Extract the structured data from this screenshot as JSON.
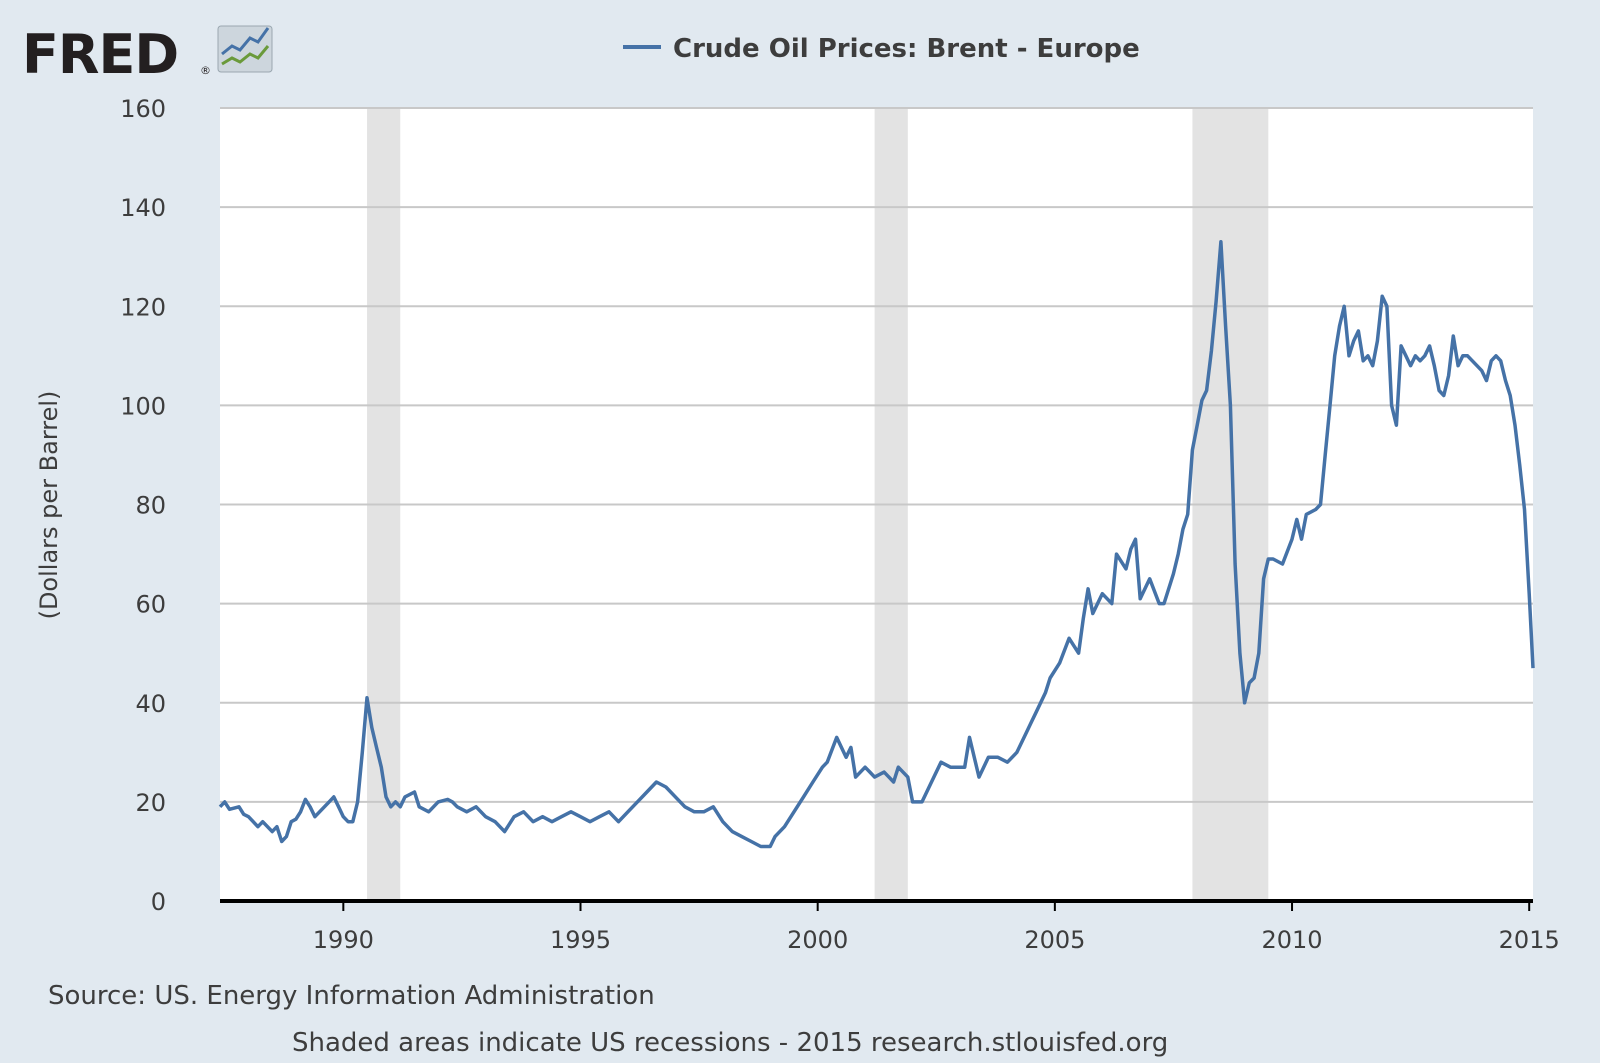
{
  "brand": {
    "logo_text": "FRED",
    "registered_mark": "®",
    "logo_icon": "line-chart-icon"
  },
  "colors": {
    "background": "#e1e9f0",
    "plot_background": "#ffffff",
    "series": "#4572a7",
    "recession": "#e3e3e3",
    "gridline": "#c8c8c8",
    "x_axis": "#000000"
  },
  "chart_data": {
    "type": "line",
    "title": "Crude Oil Prices: Brent - Europe",
    "ylabel": "(Dollars per Barrel)",
    "xlabel": "",
    "ylim": [
      0,
      160
    ],
    "xlim": [
      1987.4,
      2015.08
    ],
    "y_ticks": [
      0,
      20,
      40,
      60,
      80,
      100,
      120,
      140,
      160
    ],
    "x_ticks": [
      1990,
      1995,
      2000,
      2005,
      2010,
      2015
    ],
    "grid": true,
    "legend": "top-center",
    "recessions": [
      {
        "start": 1990.5,
        "end": 1991.2
      },
      {
        "start": 2001.2,
        "end": 2001.9
      },
      {
        "start": 2007.9,
        "end": 2009.5
      }
    ],
    "series": [
      {
        "name": "Crude Oil Prices: Brent - Europe",
        "x": [
          1987.4,
          1987.5,
          1987.6,
          1987.8,
          1987.9,
          1988.0,
          1988.2,
          1988.3,
          1988.5,
          1988.6,
          1988.7,
          1988.8,
          1988.9,
          1989.0,
          1989.1,
          1989.2,
          1989.3,
          1989.4,
          1989.5,
          1989.6,
          1989.7,
          1989.8,
          1989.9,
          1990.0,
          1990.1,
          1990.2,
          1990.3,
          1990.4,
          1990.5,
          1990.6,
          1990.7,
          1990.8,
          1990.9,
          1991.0,
          1991.1,
          1991.2,
          1991.3,
          1991.5,
          1991.6,
          1991.8,
          1992.0,
          1992.2,
          1992.3,
          1992.4,
          1992.6,
          1992.8,
          1993.0,
          1993.2,
          1993.4,
          1993.6,
          1993.8,
          1994.0,
          1994.2,
          1994.4,
          1994.6,
          1994.8,
          1995.0,
          1995.2,
          1995.4,
          1995.6,
          1995.8,
          1996.0,
          1996.2,
          1996.4,
          1996.6,
          1996.8,
          1997.0,
          1997.2,
          1997.4,
          1997.6,
          1997.8,
          1998.0,
          1998.2,
          1998.4,
          1998.6,
          1998.8,
          1999.0,
          1999.1,
          1999.3,
          1999.5,
          1999.7,
          1999.9,
          2000.1,
          2000.2,
          2000.4,
          2000.6,
          2000.7,
          2000.8,
          2000.9,
          2001.0,
          2001.1,
          2001.2,
          2001.4,
          2001.6,
          2001.7,
          2001.9,
          2002.0,
          2002.2,
          2002.4,
          2002.6,
          2002.8,
          2003.0,
          2003.1,
          2003.2,
          2003.4,
          2003.6,
          2003.8,
          2004.0,
          2004.2,
          2004.4,
          2004.5,
          2004.6,
          2004.8,
          2004.9,
          2005.1,
          2005.3,
          2005.5,
          2005.6,
          2005.7,
          2005.8,
          2006.0,
          2006.2,
          2006.3,
          2006.5,
          2006.6,
          2006.7,
          2006.8,
          2007.0,
          2007.2,
          2007.3,
          2007.5,
          2007.6,
          2007.7,
          2007.8,
          2007.9,
          2008.0,
          2008.1,
          2008.2,
          2008.3,
          2008.4,
          2008.5,
          2008.6,
          2008.7,
          2008.8,
          2008.9,
          2009.0,
          2009.1,
          2009.2,
          2009.3,
          2009.4,
          2009.5,
          2009.6,
          2009.8,
          2010.0,
          2010.1,
          2010.2,
          2010.3,
          2010.5,
          2010.6,
          2010.7,
          2010.8,
          2010.9,
          2011.0,
          2011.1,
          2011.2,
          2011.3,
          2011.4,
          2011.5,
          2011.6,
          2011.7,
          2011.8,
          2011.9,
          2012.0,
          2012.1,
          2012.2,
          2012.3,
          2012.4,
          2012.5,
          2012.6,
          2012.7,
          2012.8,
          2012.9,
          2013.0,
          2013.1,
          2013.2,
          2013.3,
          2013.4,
          2013.5,
          2013.6,
          2013.7,
          2013.8,
          2013.9,
          2014.0,
          2014.1,
          2014.2,
          2014.3,
          2014.4,
          2014.5,
          2014.6,
          2014.7,
          2014.8,
          2014.9,
          2015.0,
          2015.08
        ],
        "y": [
          19,
          20,
          18.5,
          19,
          17.5,
          17,
          15,
          16,
          14,
          15,
          12,
          13,
          16,
          16.5,
          18,
          20.5,
          19,
          17,
          18,
          19,
          20,
          21,
          19,
          17,
          16,
          16,
          20,
          30,
          41,
          35,
          31,
          27,
          21,
          19,
          20,
          19,
          21,
          22,
          19,
          18,
          20,
          20.5,
          20,
          19,
          18,
          19,
          17,
          16,
          14,
          17,
          18,
          16,
          17,
          16,
          17,
          18,
          17,
          16,
          17,
          18,
          16,
          18,
          20,
          22,
          24,
          23,
          21,
          19,
          18,
          18,
          19,
          16,
          14,
          13,
          12,
          11,
          11,
          13,
          15,
          18,
          21,
          24,
          27,
          28,
          33,
          29,
          31,
          25,
          26,
          27,
          26,
          25,
          26,
          24,
          27,
          25,
          20,
          20,
          24,
          28,
          27,
          27,
          27,
          33,
          25,
          29,
          29,
          28,
          30,
          34,
          36,
          38,
          42,
          45,
          48,
          53,
          50,
          57,
          63,
          58,
          62,
          60,
          70,
          67,
          71,
          73,
          61,
          65,
          60,
          60,
          66,
          70,
          75,
          78,
          91,
          96,
          101,
          103,
          111,
          121,
          133,
          116,
          100,
          68,
          50,
          40,
          44,
          45,
          50,
          65,
          69,
          69,
          68,
          73,
          77,
          73,
          78,
          79,
          80,
          90,
          100,
          110,
          116,
          120,
          110,
          113,
          115,
          109,
          110,
          108,
          113,
          122,
          120,
          100,
          96,
          112,
          110,
          108,
          110,
          109,
          110,
          112,
          108,
          103,
          102,
          106,
          114,
          108,
          110,
          110,
          109,
          108,
          107,
          105,
          109,
          110,
          109,
          105,
          102,
          96,
          88,
          79,
          62,
          47
        ]
      }
    ]
  },
  "footer": {
    "source": "Source: US. Energy Information Administration",
    "note": "Shaded areas indicate US recessions - 2015 research.stlouisfed.org"
  }
}
